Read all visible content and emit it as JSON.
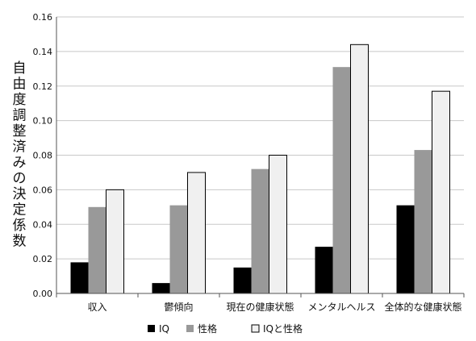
{
  "chart_data": {
    "type": "bar",
    "title": "",
    "xlabel": "",
    "ylabel": "自由度調整済みの決定係数",
    "ylim": [
      0,
      0.16
    ],
    "yticks": [
      "0.00",
      "0.02",
      "0.04",
      "0.06",
      "0.08",
      "0.10",
      "0.12",
      "0.14",
      "0.16"
    ],
    "grid": true,
    "legend_position": "bottom",
    "categories": [
      "収入",
      "鬱傾向",
      "現在の健康状態",
      "メンタルヘルス",
      "全体的な健康状態"
    ],
    "series": [
      {
        "name": "IQ",
        "color": "#000000",
        "values": [
          0.018,
          0.006,
          0.015,
          0.027,
          0.051
        ]
      },
      {
        "name": "性格",
        "color": "#999999",
        "values": [
          0.05,
          0.051,
          0.072,
          0.131,
          0.083
        ]
      },
      {
        "name": "IQと性格",
        "color": "#f0f0f0",
        "values": [
          0.06,
          0.07,
          0.08,
          0.144,
          0.117
        ]
      }
    ]
  }
}
